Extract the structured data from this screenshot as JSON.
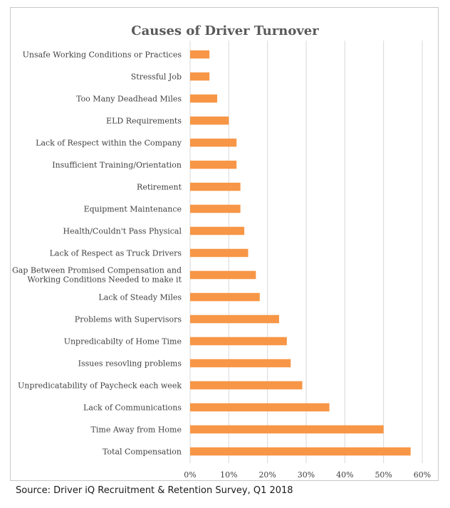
{
  "chart_data": {
    "type": "bar",
    "orientation": "horizontal",
    "title": "Causes of Driver Turnover",
    "categories": [
      "Unsafe Working Conditions or Practices",
      "Stressful Job",
      "Too Many Deadhead Miles",
      "ELD Requirements",
      "Lack of Respect within the Company",
      "Insufficient Training/Orientation",
      "Retirement",
      "Equipment Maintenance",
      "Health/Couldn't Pass Physical",
      "Lack of Respect as Truck Drivers",
      "Gap Between Promised Compensation and Working Conditions Needed to make it",
      "Lack of Steady Miles",
      "Problems with Supervisors",
      "Unpredicabilty of Home Time",
      "Issues resovling problems",
      "Unpredicatability of Paycheck each week",
      "Lack of Communications",
      "Time Away from Home",
      "Total Compensation"
    ],
    "values": [
      5,
      5,
      7,
      10,
      12,
      12,
      13,
      13,
      14,
      15,
      17,
      18,
      23,
      25,
      26,
      29,
      36,
      50,
      57
    ],
    "xlim": [
      0,
      60
    ],
    "x_ticks": [
      "0%",
      "10%",
      "20%",
      "30%",
      "40%",
      "50%",
      "60%"
    ],
    "grid": true,
    "bar_color": "#F79646",
    "grid_color": "#D9D9D9"
  },
  "source": "Source:  Driver iQ Recruitment & Retention Survey, Q1 2018"
}
